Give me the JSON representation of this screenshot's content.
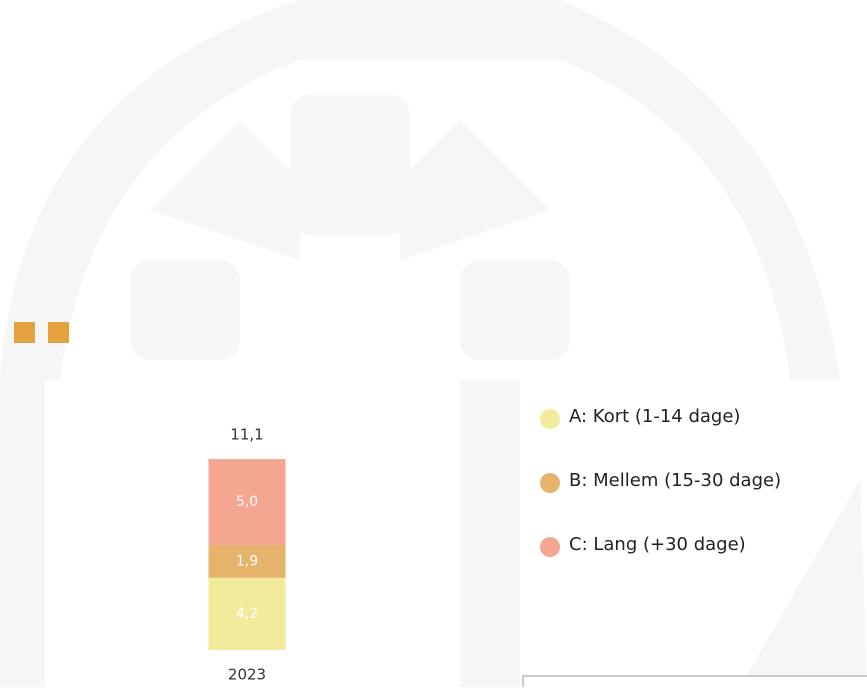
{
  "chart_data": {
    "type": "bar",
    "stacked": true,
    "categories": [
      "2023"
    ],
    "series": [
      {
        "name": "A: Kort (1-14 dage)",
        "color": "#f3eb9c",
        "values": [
          4.2
        ],
        "value_labels": [
          "4,2"
        ]
      },
      {
        "name": "B: Mellem (15-30 dage)",
        "color": "#e6b36c",
        "values": [
          1.9
        ],
        "value_labels": [
          "1,9"
        ]
      },
      {
        "name": "C: Lang (+30 dage)",
        "color": "#f4a690",
        "values": [
          5.0
        ],
        "value_labels": [
          "5,0"
        ]
      }
    ],
    "totals": [
      11.1
    ],
    "total_labels": [
      "11,1"
    ],
    "legend": "right"
  }
}
